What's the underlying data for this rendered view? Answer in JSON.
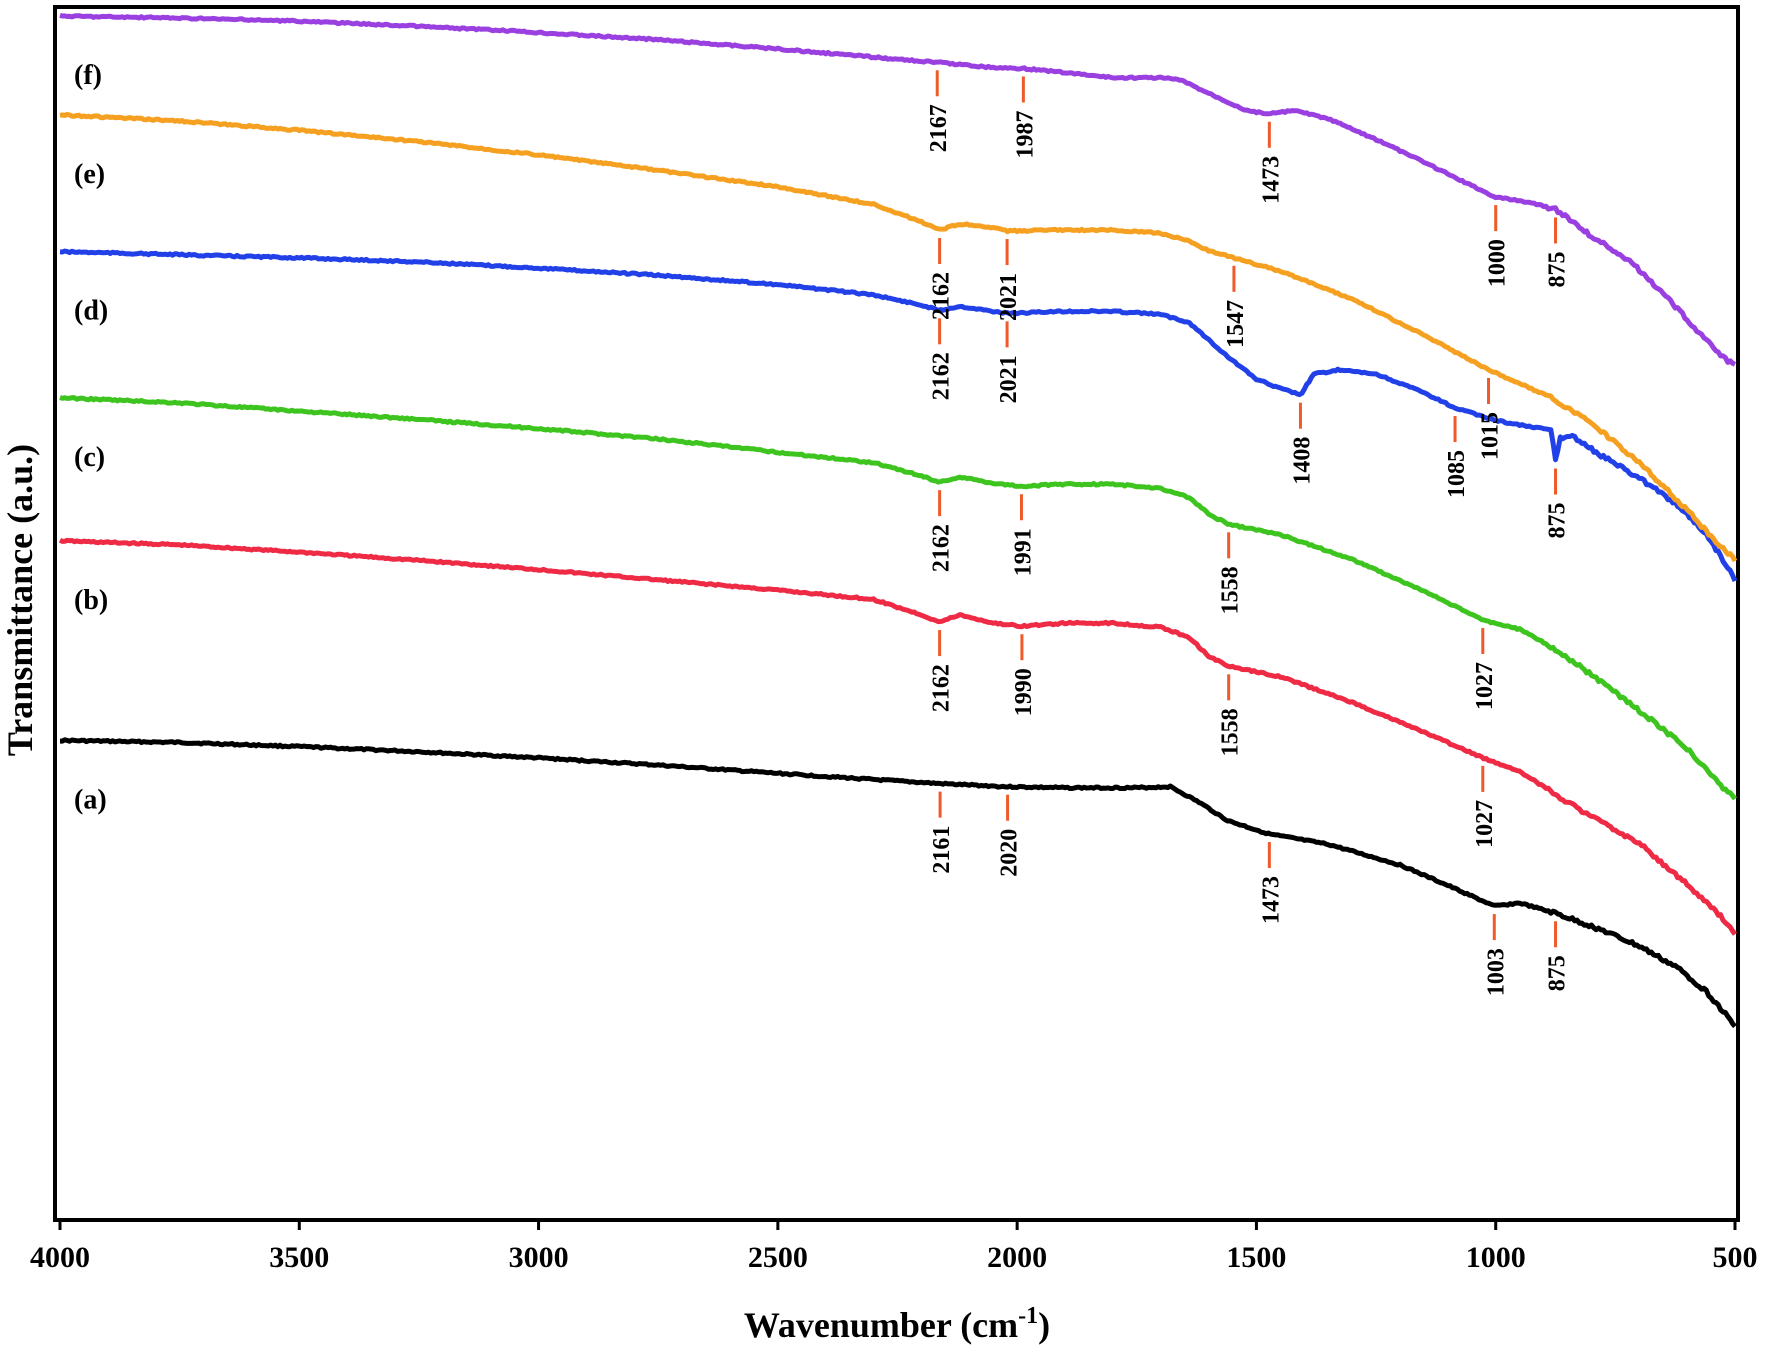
{
  "chart_data": {
    "type": "line",
    "title": "",
    "xlabel": "Wavenumber (cm",
    "xlabel_sup": "-1",
    "xlabel_end": ")",
    "ylabel": "Transmittance  (a.u.)",
    "xlim": [
      4000,
      500
    ],
    "x_reversed": true,
    "grid": false,
    "legend": "none",
    "x_ticks": [
      4000,
      3500,
      3000,
      2500,
      2000,
      1500,
      1000,
      500
    ],
    "x_tick_labels": [
      "4000",
      "3500",
      "3000",
      "2500",
      "2000",
      "1500",
      "1000",
      "500"
    ],
    "series": [
      {
        "name": "(a)",
        "color": "#000000",
        "x": [
          4000,
          3750,
          3500,
          3250,
          3000,
          2750,
          2500,
          2300,
          2161,
          2020,
          1900,
          1750,
          1680,
          1620,
          1560,
          1473,
          1350,
          1200,
          1100,
          1003,
          950,
          875,
          780,
          700,
          620,
          560,
          520,
          500
        ],
        "y": [
          0.296,
          0.294,
          0.29,
          0.285,
          0.279,
          0.272,
          0.264,
          0.258,
          0.254,
          0.251,
          0.25,
          0.25,
          0.251,
          0.236,
          0.218,
          0.205,
          0.195,
          0.175,
          0.155,
          0.135,
          0.138,
          0.128,
          0.112,
          0.096,
          0.075,
          0.052,
          0.03,
          0.018
        ],
        "peaks": [
          {
            "x": 2161,
            "label": "2161"
          },
          {
            "x": 2020,
            "label": "2020"
          },
          {
            "x": 1473,
            "label": "1473"
          },
          {
            "x": 1003,
            "label": "1003"
          },
          {
            "x": 875,
            "label": "875"
          }
        ]
      },
      {
        "name": "(b)",
        "color": "#ee2a45",
        "x": [
          4000,
          3750,
          3500,
          3250,
          3000,
          2750,
          2500,
          2300,
          2200,
          2162,
          2120,
          2050,
          1990,
          1900,
          1800,
          1700,
          1640,
          1600,
          1558,
          1450,
          1300,
          1150,
          1027,
          950,
          880,
          800,
          700,
          600,
          530,
          500
        ],
        "y": [
          0.49,
          0.486,
          0.479,
          0.471,
          0.462,
          0.452,
          0.442,
          0.433,
          0.418,
          0.411,
          0.418,
          0.41,
          0.407,
          0.41,
          0.41,
          0.406,
          0.396,
          0.378,
          0.368,
          0.358,
          0.333,
          0.304,
          0.279,
          0.266,
          0.245,
          0.222,
          0.196,
          0.156,
          0.125,
          0.108
        ],
        "peaks": [
          {
            "x": 2162,
            "label": "2162"
          },
          {
            "x": 1990,
            "label": "1990"
          },
          {
            "x": 1558,
            "label": "1558"
          },
          {
            "x": 1027,
            "label": "1027"
          }
        ]
      },
      {
        "name": "(c)",
        "color": "#3dc41e",
        "x": [
          4000,
          3750,
          3500,
          3250,
          3000,
          2750,
          2500,
          2300,
          2200,
          2162,
          2120,
          2050,
          1991,
          1900,
          1800,
          1700,
          1640,
          1600,
          1558,
          1450,
          1300,
          1150,
          1027,
          950,
          880,
          800,
          700,
          600,
          530,
          500
        ],
        "y": [
          0.629,
          0.624,
          0.616,
          0.608,
          0.599,
          0.589,
          0.576,
          0.566,
          0.553,
          0.547,
          0.552,
          0.546,
          0.543,
          0.545,
          0.545,
          0.541,
          0.532,
          0.516,
          0.506,
          0.496,
          0.472,
          0.441,
          0.413,
          0.404,
          0.386,
          0.36,
          0.325,
          0.288,
          0.252,
          0.24
        ],
        "peaks": [
          {
            "x": 2162,
            "label": "2162"
          },
          {
            "x": 1991,
            "label": "1991"
          },
          {
            "x": 1558,
            "label": "1558"
          },
          {
            "x": 1027,
            "label": "1027"
          }
        ]
      },
      {
        "name": "(d)",
        "color": "#2240e8",
        "x": [
          4000,
          3750,
          3500,
          3250,
          3000,
          2750,
          2500,
          2300,
          2200,
          2162,
          2120,
          2050,
          2021,
          1900,
          1800,
          1700,
          1640,
          1560,
          1500,
          1450,
          1408,
          1380,
          1330,
          1250,
          1150,
          1085,
          1000,
          920,
          885,
          875,
          865,
          840,
          780,
          700,
          620,
          560,
          520,
          500
        ],
        "y": [
          0.771,
          0.768,
          0.765,
          0.761,
          0.755,
          0.748,
          0.739,
          0.729,
          0.719,
          0.714,
          0.718,
          0.713,
          0.711,
          0.713,
          0.713,
          0.71,
          0.702,
          0.669,
          0.647,
          0.638,
          0.632,
          0.652,
          0.656,
          0.652,
          0.634,
          0.619,
          0.607,
          0.6,
          0.598,
          0.568,
          0.59,
          0.592,
          0.573,
          0.551,
          0.525,
          0.496,
          0.468,
          0.452
        ],
        "peaks": [
          {
            "x": 2162,
            "label": "2162"
          },
          {
            "x": 2021,
            "label": "2021"
          },
          {
            "x": 1408,
            "label": "1408"
          },
          {
            "x": 1085,
            "label": "1085"
          },
          {
            "x": 875,
            "label": "875"
          }
        ]
      },
      {
        "name": "(e)",
        "color": "#f5a020",
        "x": [
          4000,
          3750,
          3500,
          3250,
          3000,
          2750,
          2500,
          2300,
          2200,
          2162,
          2120,
          2050,
          2021,
          1900,
          1800,
          1700,
          1640,
          1600,
          1547,
          1450,
          1300,
          1150,
          1015,
          950,
          880,
          800,
          700,
          600,
          530,
          500
        ],
        "y": [
          0.904,
          0.898,
          0.889,
          0.878,
          0.865,
          0.85,
          0.834,
          0.817,
          0.8,
          0.792,
          0.798,
          0.794,
          0.791,
          0.792,
          0.792,
          0.789,
          0.781,
          0.772,
          0.765,
          0.752,
          0.725,
          0.69,
          0.656,
          0.643,
          0.628,
          0.604,
          0.566,
          0.52,
          0.484,
          0.472
        ],
        "peaks": [
          {
            "x": 2162,
            "label": "2162"
          },
          {
            "x": 2021,
            "label": "2021"
          },
          {
            "x": 1547,
            "label": "1547"
          },
          {
            "x": 1015,
            "label": "1015"
          }
        ]
      },
      {
        "name": "(f)",
        "color": "#9a40e0",
        "x": [
          4000,
          3750,
          3500,
          3250,
          3000,
          2750,
          2500,
          2300,
          2200,
          2167,
          2100,
          2050,
          1987,
          1900,
          1800,
          1700,
          1660,
          1600,
          1520,
          1473,
          1420,
          1350,
          1250,
          1150,
          1050,
          1000,
          930,
          875,
          850,
          800,
          720,
          650,
          580,
          530,
          500
        ],
        "y": [
          1.0,
          0.998,
          0.995,
          0.99,
          0.984,
          0.977,
          0.968,
          0.96,
          0.956,
          0.955,
          0.952,
          0.95,
          0.949,
          0.945,
          0.94,
          0.94,
          0.938,
          0.925,
          0.908,
          0.905,
          0.908,
          0.9,
          0.88,
          0.858,
          0.835,
          0.824,
          0.819,
          0.812,
          0.804,
          0.786,
          0.762,
          0.73,
          0.695,
          0.67,
          0.66
        ],
        "peaks": [
          {
            "x": 2167,
            "label": "2167"
          },
          {
            "x": 1987,
            "label": "1987"
          },
          {
            "x": 1473,
            "label": "1473"
          },
          {
            "x": 1000,
            "label": "1000"
          },
          {
            "x": 875,
            "label": "875"
          }
        ]
      }
    ]
  }
}
